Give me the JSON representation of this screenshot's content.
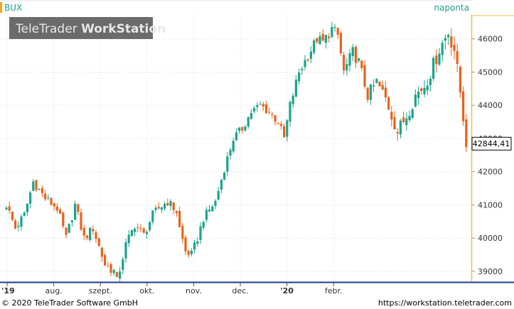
{
  "chart_data": {
    "type": "candlestick",
    "title": "BUX",
    "period_label": "naponta",
    "last_value_label": "42844,41",
    "ylim": [
      38700,
      46700
    ],
    "yticks": [
      39000,
      40000,
      41000,
      42000,
      43000,
      44000,
      45000,
      46000
    ],
    "ytick_labels": [
      "39000",
      "40000",
      "41000",
      "42000",
      "43000",
      "44000",
      "45000",
      "46000"
    ],
    "x_months": [
      {
        "label": "'19",
        "bold": true
      },
      {
        "label": "aug.",
        "bold": false
      },
      {
        "label": "szept.",
        "bold": false
      },
      {
        "label": "okt.",
        "bold": false
      },
      {
        "label": "nov.",
        "bold": false
      },
      {
        "label": "dec.",
        "bold": false
      },
      {
        "label": "'20",
        "bold": true
      },
      {
        "label": "febr.",
        "bold": false
      }
    ],
    "colors": {
      "up": "#1aa38c",
      "down": "#e8621a",
      "accent": "#f5a623",
      "axis_line": "#1c3c8c"
    },
    "grid": true,
    "path": [
      [
        0,
        41000
      ],
      [
        3,
        40300
      ],
      [
        6,
        40700
      ],
      [
        9,
        41700
      ],
      [
        13,
        41200
      ],
      [
        17,
        40900
      ],
      [
        20,
        40000
      ],
      [
        23,
        41000
      ],
      [
        26,
        40000
      ],
      [
        29,
        40300
      ],
      [
        33,
        39200
      ],
      [
        36,
        39000
      ],
      [
        37,
        38700
      ],
      [
        40,
        39800
      ],
      [
        43,
        40400
      ],
      [
        46,
        40100
      ],
      [
        49,
        40700
      ],
      [
        51,
        40900
      ],
      [
        54,
        41100
      ],
      [
        57,
        40800
      ],
      [
        58,
        40300
      ],
      [
        60,
        39600
      ],
      [
        62,
        39500
      ],
      [
        64,
        40000
      ],
      [
        66,
        40600
      ],
      [
        70,
        41100
      ],
      [
        73,
        42100
      ],
      [
        76,
        43000
      ],
      [
        79,
        43300
      ],
      [
        82,
        43800
      ],
      [
        85,
        44000
      ],
      [
        88,
        43800
      ],
      [
        91,
        43500
      ],
      [
        93,
        43000
      ],
      [
        95,
        44000
      ],
      [
        98,
        45000
      ],
      [
        101,
        45500
      ],
      [
        104,
        46000
      ],
      [
        106,
        45900
      ],
      [
        109,
        46300
      ],
      [
        111,
        46100
      ],
      [
        113,
        45000
      ],
      [
        116,
        45600
      ],
      [
        118,
        45300
      ],
      [
        121,
        44300
      ],
      [
        124,
        44700
      ],
      [
        127,
        44200
      ],
      [
        129,
        43700
      ],
      [
        131,
        43200
      ],
      [
        134,
        43700
      ],
      [
        137,
        44300
      ],
      [
        140,
        44600
      ],
      [
        143,
        45200
      ],
      [
        145,
        45700
      ],
      [
        148,
        46200
      ],
      [
        150,
        45700
      ],
      [
        152,
        44400
      ],
      [
        154,
        42844.41
      ]
    ],
    "volatility": [
      [
        0,
        1.0
      ],
      [
        30,
        1.1
      ],
      [
        80,
        1.0
      ],
      [
        110,
        1.3
      ],
      [
        150,
        2.0
      ],
      [
        154,
        1.2
      ]
    ]
  },
  "watermark": {
    "brand": "TeleTrader",
    "product": "WorkStation"
  },
  "footer": {
    "copyright": "© 2020 TeleTrader Software GmbH",
    "url": "https://workstation.teletrader.com"
  }
}
